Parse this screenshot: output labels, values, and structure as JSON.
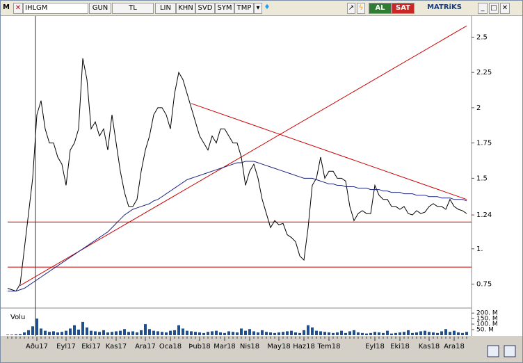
{
  "toolbar": {
    "logo": "M",
    "symbol": "IHLGM",
    "buttons": [
      "GUN",
      "TL",
      "LIN",
      "KHN",
      "SVD",
      "SYM",
      "TMP"
    ],
    "buy": "AL",
    "sell": "SAT",
    "brand": "MATRiKS"
  },
  "chart_data": {
    "type": "line",
    "categories": [
      null,
      null,
      null,
      null,
      null,
      null,
      null,
      "Aðu17",
      null,
      null,
      null,
      null,
      null,
      null,
      "Eyl17",
      null,
      null,
      null,
      null,
      null,
      "Eki17",
      null,
      null,
      null,
      null,
      null,
      "Kas17",
      null,
      null,
      null,
      null,
      null,
      null,
      "Ara17",
      null,
      null,
      null,
      null,
      null,
      "Oca18",
      null,
      null,
      null,
      null,
      null,
      null,
      "Þub18",
      null,
      null,
      null,
      null,
      null,
      "Mar18",
      null,
      null,
      null,
      null,
      null,
      "Nis18",
      null,
      null,
      null,
      null,
      null,
      null,
      "May18",
      null,
      null,
      null,
      null,
      null,
      "Haz18",
      null,
      null,
      null,
      null,
      null,
      "Tem18",
      null,
      null,
      null,
      null,
      null,
      null,
      null,
      null,
      null,
      null,
      "Eyl18",
      null,
      null,
      null,
      null,
      null,
      "Eki18",
      null,
      null,
      null,
      null,
      null,
      null,
      "Kas18",
      null,
      null,
      null,
      null,
      null,
      "Ara18",
      null,
      null,
      null
    ],
    "series": [
      {
        "color": "#000000",
        "values": [
          0.72,
          0.71,
          0.7,
          0.75,
          1.0,
          1.25,
          1.5,
          1.95,
          2.05,
          1.85,
          1.75,
          1.75,
          1.65,
          1.6,
          1.45,
          1.7,
          1.75,
          1.85,
          2.35,
          2.2,
          1.85,
          1.9,
          1.8,
          1.85,
          1.7,
          1.95,
          1.75,
          1.55,
          1.4,
          1.3,
          1.3,
          1.35,
          1.55,
          1.7,
          1.8,
          1.95,
          2.0,
          2.0,
          1.95,
          1.85,
          2.1,
          2.25,
          2.2,
          2.1,
          2.0,
          1.9,
          1.8,
          1.75,
          1.7,
          1.8,
          1.75,
          1.85,
          1.85,
          1.8,
          1.75,
          1.75,
          1.65,
          1.45,
          1.55,
          1.6,
          1.5,
          1.35,
          1.25,
          1.15,
          1.2,
          1.17,
          1.18,
          1.1,
          1.08,
          1.05,
          0.95,
          0.92,
          1.15,
          1.45,
          1.5,
          1.65,
          1.5,
          1.55,
          1.55,
          1.5,
          1.5,
          1.48,
          1.3,
          1.2,
          1.25,
          1.27,
          1.25,
          1.25,
          1.45,
          1.38,
          1.35,
          1.35,
          1.3,
          1.3,
          1.28,
          1.3,
          1.25,
          1.24,
          1.27,
          1.25,
          1.26,
          1.3,
          1.32,
          1.3,
          1.3,
          1.28,
          1.35,
          1.3,
          1.28,
          1.27,
          1.25
        ]
      },
      {
        "color": "#1a237e",
        "values": [
          0.7,
          0.7,
          0.7,
          0.71,
          0.72,
          0.74,
          0.76,
          0.78,
          0.8,
          0.82,
          0.84,
          0.86,
          0.88,
          0.9,
          0.92,
          0.94,
          0.96,
          0.98,
          1.0,
          1.02,
          1.04,
          1.06,
          1.08,
          1.1,
          1.12,
          1.15,
          1.18,
          1.21,
          1.24,
          1.26,
          1.28,
          1.29,
          1.3,
          1.31,
          1.32,
          1.34,
          1.35,
          1.37,
          1.39,
          1.41,
          1.43,
          1.45,
          1.47,
          1.49,
          1.5,
          1.51,
          1.52,
          1.53,
          1.54,
          1.55,
          1.56,
          1.57,
          1.58,
          1.59,
          1.6,
          1.61,
          1.61,
          1.62,
          1.62,
          1.62,
          1.61,
          1.6,
          1.59,
          1.58,
          1.57,
          1.56,
          1.55,
          1.54,
          1.53,
          1.52,
          1.51,
          1.5,
          1.5,
          1.5,
          1.49,
          1.48,
          1.47,
          1.46,
          1.46,
          1.45,
          1.45,
          1.44,
          1.44,
          1.44,
          1.43,
          1.43,
          1.43,
          1.42,
          1.42,
          1.42,
          1.41,
          1.41,
          1.4,
          1.4,
          1.4,
          1.39,
          1.39,
          1.39,
          1.38,
          1.38,
          1.38,
          1.37,
          1.37,
          1.37,
          1.36,
          1.36,
          1.36,
          1.35,
          1.35,
          1.35,
          1.34
        ]
      }
    ],
    "ylim": [
      0.59,
      2.65
    ],
    "yticks": [
      0.75,
      {
        "value": 1,
        "label": "1."
      },
      1.24,
      1.5,
      1.75,
      2,
      2.25,
      2.5
    ],
    "hlines": [
      1.19,
      0.87
    ],
    "hline_color": "#cc0000",
    "trendlines": [
      {
        "color": "#cc0000",
        "points": [
          [
            3,
            0.74
          ],
          [
            110,
            2.58
          ]
        ]
      },
      {
        "color": "#cc0000",
        "points": [
          [
            44,
            2.03
          ],
          [
            110,
            1.35
          ]
        ]
      }
    ],
    "volume": {
      "label": "Volu",
      "color": "#1f4f8f",
      "values": [
        5,
        5,
        8,
        10,
        25,
        45,
        80,
        150,
        60,
        40,
        30,
        35,
        25,
        30,
        40,
        60,
        90,
        50,
        120,
        70,
        40,
        35,
        30,
        45,
        25,
        30,
        35,
        40,
        55,
        30,
        35,
        25,
        45,
        100,
        55,
        40,
        35,
        30,
        25,
        40,
        45,
        90,
        60,
        40,
        35,
        30,
        25,
        20,
        30,
        35,
        40,
        25,
        20,
        35,
        30,
        25,
        60,
        40,
        55,
        35,
        25,
        45,
        30,
        25,
        20,
        25,
        30,
        35,
        40,
        25,
        20,
        45,
        90,
        70,
        40,
        35,
        30,
        25,
        20,
        25,
        40,
        20,
        35,
        45,
        25,
        20,
        15,
        20,
        30,
        25,
        20,
        40,
        15,
        20,
        25,
        30,
        45,
        20,
        25,
        35,
        40,
        30,
        25,
        20,
        35,
        55,
        30,
        40,
        25,
        20,
        30
      ],
      "ylim": [
        0,
        220
      ],
      "yticks": [
        {
          "value": 50,
          "label": "50. M"
        },
        {
          "value": 100,
          "label": "100. M"
        },
        {
          "value": 150,
          "label": "150. M"
        },
        {
          "value": 200,
          "label": "200. M"
        }
      ]
    }
  }
}
